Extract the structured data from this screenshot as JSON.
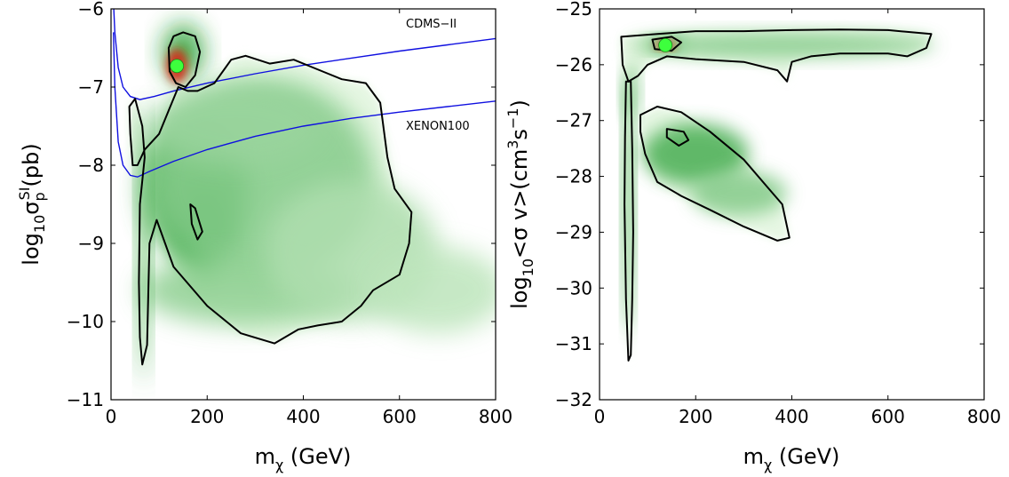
{
  "chart_data": [
    {
      "type": "heatmap",
      "panel": "left",
      "xlim": [
        0,
        800
      ],
      "ylim": [
        -11,
        -6
      ],
      "x_ticks": [
        "0",
        "200",
        "400",
        "600",
        "800"
      ],
      "y_ticks": [
        "−11",
        "−10",
        "−9",
        "−8",
        "−7",
        "−6"
      ],
      "xlabel": {
        "base": "m",
        "sub": "χ",
        "rest": " (GeV)"
      },
      "ylabel": {
        "pre": "log",
        "sub10": "10",
        "sigma": "σ",
        "sub": "p",
        "sup": "SI",
        "post": "(pb)"
      },
      "best_fit": {
        "x": 137,
        "y": -6.73
      },
      "limit_curves": [
        {
          "name": "CDMS−II",
          "color": "#1010e0",
          "points": [
            [
              5,
              -5.9
            ],
            [
              8,
              -6.3
            ],
            [
              15,
              -6.75
            ],
            [
              25,
              -7.0
            ],
            [
              40,
              -7.12
            ],
            [
              60,
              -7.16
            ],
            [
              90,
              -7.12
            ],
            [
              130,
              -7.05
            ],
            [
              200,
              -6.95
            ],
            [
              300,
              -6.83
            ],
            [
              400,
              -6.72
            ],
            [
              500,
              -6.63
            ],
            [
              600,
              -6.54
            ],
            [
              700,
              -6.46
            ],
            [
              800,
              -6.38
            ]
          ]
        },
        {
          "name": "XENON100",
          "color": "#1010e0",
          "points": [
            [
              5,
              -6.3
            ],
            [
              8,
              -7.0
            ],
            [
              15,
              -7.7
            ],
            [
              25,
              -8.0
            ],
            [
              40,
              -8.13
            ],
            [
              55,
              -8.15
            ],
            [
              80,
              -8.08
            ],
            [
              130,
              -7.95
            ],
            [
              200,
              -7.8
            ],
            [
              300,
              -7.63
            ],
            [
              400,
              -7.5
            ],
            [
              500,
              -7.4
            ],
            [
              600,
              -7.32
            ],
            [
              700,
              -7.25
            ],
            [
              800,
              -7.18
            ]
          ]
        }
      ],
      "contour_95": [
        [
          140,
          -7.0
        ],
        [
          120,
          -7.3
        ],
        [
          100,
          -7.6
        ],
        [
          70,
          -7.8
        ],
        [
          55,
          -8.0
        ],
        [
          45,
          -8.0
        ],
        [
          40,
          -7.6
        ],
        [
          38,
          -7.25
        ],
        [
          50,
          -7.15
        ],
        [
          65,
          -7.5
        ],
        [
          70,
          -7.9
        ],
        [
          60,
          -8.5
        ],
        [
          58,
          -9.5
        ],
        [
          60,
          -10.2
        ],
        [
          65,
          -10.55
        ],
        [
          75,
          -10.3
        ],
        [
          80,
          -9.0
        ],
        [
          95,
          -8.7
        ],
        [
          130,
          -9.3
        ],
        [
          200,
          -9.8
        ],
        [
          270,
          -10.15
        ],
        [
          340,
          -10.28
        ],
        [
          390,
          -10.1
        ],
        [
          430,
          -10.05
        ],
        [
          480,
          -10.0
        ],
        [
          520,
          -9.8
        ],
        [
          545,
          -9.6
        ],
        [
          600,
          -9.4
        ],
        [
          620,
          -9.0
        ],
        [
          625,
          -8.6
        ],
        [
          590,
          -8.3
        ],
        [
          575,
          -7.9
        ],
        [
          560,
          -7.2
        ],
        [
          530,
          -6.95
        ],
        [
          480,
          -6.9
        ],
        [
          420,
          -6.75
        ],
        [
          380,
          -6.65
        ],
        [
          330,
          -6.7
        ],
        [
          280,
          -6.6
        ],
        [
          250,
          -6.65
        ],
        [
          215,
          -6.95
        ],
        [
          180,
          -7.05
        ],
        [
          160,
          -7.05
        ]
      ],
      "contour_68": [
        [
          120,
          -6.5
        ],
        [
          130,
          -6.35
        ],
        [
          150,
          -6.3
        ],
        [
          175,
          -6.35
        ],
        [
          185,
          -6.55
        ],
        [
          175,
          -6.85
        ],
        [
          155,
          -7.0
        ],
        [
          135,
          -6.95
        ],
        [
          122,
          -6.8
        ]
      ],
      "contour_68b": [
        [
          165,
          -8.5
        ],
        [
          175,
          -8.55
        ],
        [
          190,
          -8.85
        ],
        [
          180,
          -8.95
        ],
        [
          168,
          -8.75
        ]
      ],
      "density_blobs": [
        {
          "x": 150,
          "y": -6.55,
          "w": 40,
          "h": 0.35,
          "level": 1.0
        },
        {
          "x": 175,
          "y": -8.3,
          "w": 110,
          "h": 0.9,
          "level": 0.75
        },
        {
          "x": 195,
          "y": -8.9,
          "w": 60,
          "h": 0.6,
          "level": 0.8
        },
        {
          "x": 320,
          "y": -8.2,
          "w": 230,
          "h": 1.3,
          "level": 0.45
        },
        {
          "x": 260,
          "y": -7.5,
          "w": 180,
          "h": 0.5,
          "level": 0.35
        },
        {
          "x": 280,
          "y": -9.6,
          "w": 220,
          "h": 0.45,
          "level": 0.4
        },
        {
          "x": 68,
          "y": -9.0,
          "w": 12,
          "h": 1.8,
          "level": 0.7
        },
        {
          "x": 500,
          "y": -9.1,
          "w": 180,
          "h": 0.9,
          "level": 0.25
        },
        {
          "x": 680,
          "y": -9.6,
          "w": 140,
          "h": 0.55,
          "level": 0.18
        }
      ]
    },
    {
      "type": "heatmap",
      "panel": "right",
      "xlim": [
        0,
        800
      ],
      "ylim": [
        -32,
        -25
      ],
      "x_ticks": [
        "0",
        "200",
        "400",
        "600",
        "800"
      ],
      "y_ticks": [
        "−32",
        "−31",
        "−30",
        "−29",
        "−28",
        "−27",
        "−26",
        "−25"
      ],
      "xlabel": {
        "base": "m",
        "sub": "χ",
        "rest": " (GeV)"
      },
      "ylabel": {
        "pre": "log",
        "sub10": "10",
        "mid": "<σ v>(cm",
        "sup1": "3",
        "mid2": "s",
        "sup2": "−1",
        "post": ")"
      },
      "best_fit": {
        "x": 137,
        "y": -25.65
      },
      "contour_95_top": [
        [
          45,
          -25.5
        ],
        [
          120,
          -25.45
        ],
        [
          200,
          -25.4
        ],
        [
          300,
          -25.4
        ],
        [
          400,
          -25.38
        ],
        [
          500,
          -25.37
        ],
        [
          600,
          -25.38
        ],
        [
          690,
          -25.45
        ],
        [
          680,
          -25.7
        ],
        [
          640,
          -25.85
        ],
        [
          600,
          -25.8
        ],
        [
          560,
          -25.8
        ],
        [
          500,
          -25.8
        ],
        [
          440,
          -25.85
        ],
        [
          400,
          -25.95
        ],
        [
          390,
          -26.3
        ],
        [
          370,
          -26.1
        ],
        [
          300,
          -25.95
        ],
        [
          200,
          -25.9
        ],
        [
          140,
          -25.85
        ],
        [
          100,
          -26.0
        ],
        [
          80,
          -26.2
        ],
        [
          60,
          -26.3
        ],
        [
          48,
          -26.0
        ]
      ],
      "contour_95_stem": [
        [
          55,
          -26.3
        ],
        [
          65,
          -26.3
        ],
        [
          68,
          -27.5
        ],
        [
          70,
          -29.0
        ],
        [
          68,
          -30.2
        ],
        [
          65,
          -31.2
        ],
        [
          60,
          -31.3
        ],
        [
          55,
          -30.2
        ],
        [
          52,
          -28.5
        ],
        [
          53,
          -27.3
        ]
      ],
      "contour_95_lobe": [
        [
          85,
          -26.9
        ],
        [
          120,
          -26.75
        ],
        [
          170,
          -26.85
        ],
        [
          230,
          -27.2
        ],
        [
          300,
          -27.7
        ],
        [
          350,
          -28.2
        ],
        [
          380,
          -28.5
        ],
        [
          395,
          -29.1
        ],
        [
          370,
          -29.15
        ],
        [
          300,
          -28.9
        ],
        [
          230,
          -28.6
        ],
        [
          170,
          -28.35
        ],
        [
          120,
          -28.1
        ],
        [
          95,
          -27.6
        ],
        [
          85,
          -27.2
        ]
      ],
      "contour_68_top": [
        [
          110,
          -25.55
        ],
        [
          150,
          -25.5
        ],
        [
          170,
          -25.6
        ],
        [
          150,
          -25.75
        ],
        [
          115,
          -25.72
        ]
      ],
      "contour_68_lobe": [
        [
          140,
          -27.15
        ],
        [
          175,
          -27.2
        ],
        [
          185,
          -27.35
        ],
        [
          165,
          -27.45
        ],
        [
          140,
          -27.3
        ]
      ],
      "density_blobs": [
        {
          "x": 140,
          "y": -25.63,
          "w": 35,
          "h": 0.12,
          "level": 1.0
        },
        {
          "x": 380,
          "y": -25.65,
          "w": 320,
          "h": 0.22,
          "level": 0.45
        },
        {
          "x": 200,
          "y": -27.6,
          "w": 110,
          "h": 0.55,
          "level": 0.75
        },
        {
          "x": 290,
          "y": -28.3,
          "w": 100,
          "h": 0.4,
          "level": 0.45
        },
        {
          "x": 60,
          "y": -28.5,
          "w": 10,
          "h": 2.3,
          "level": 0.7
        },
        {
          "x": 65,
          "y": -26.5,
          "w": 15,
          "h": 0.5,
          "level": 0.5
        }
      ]
    }
  ]
}
